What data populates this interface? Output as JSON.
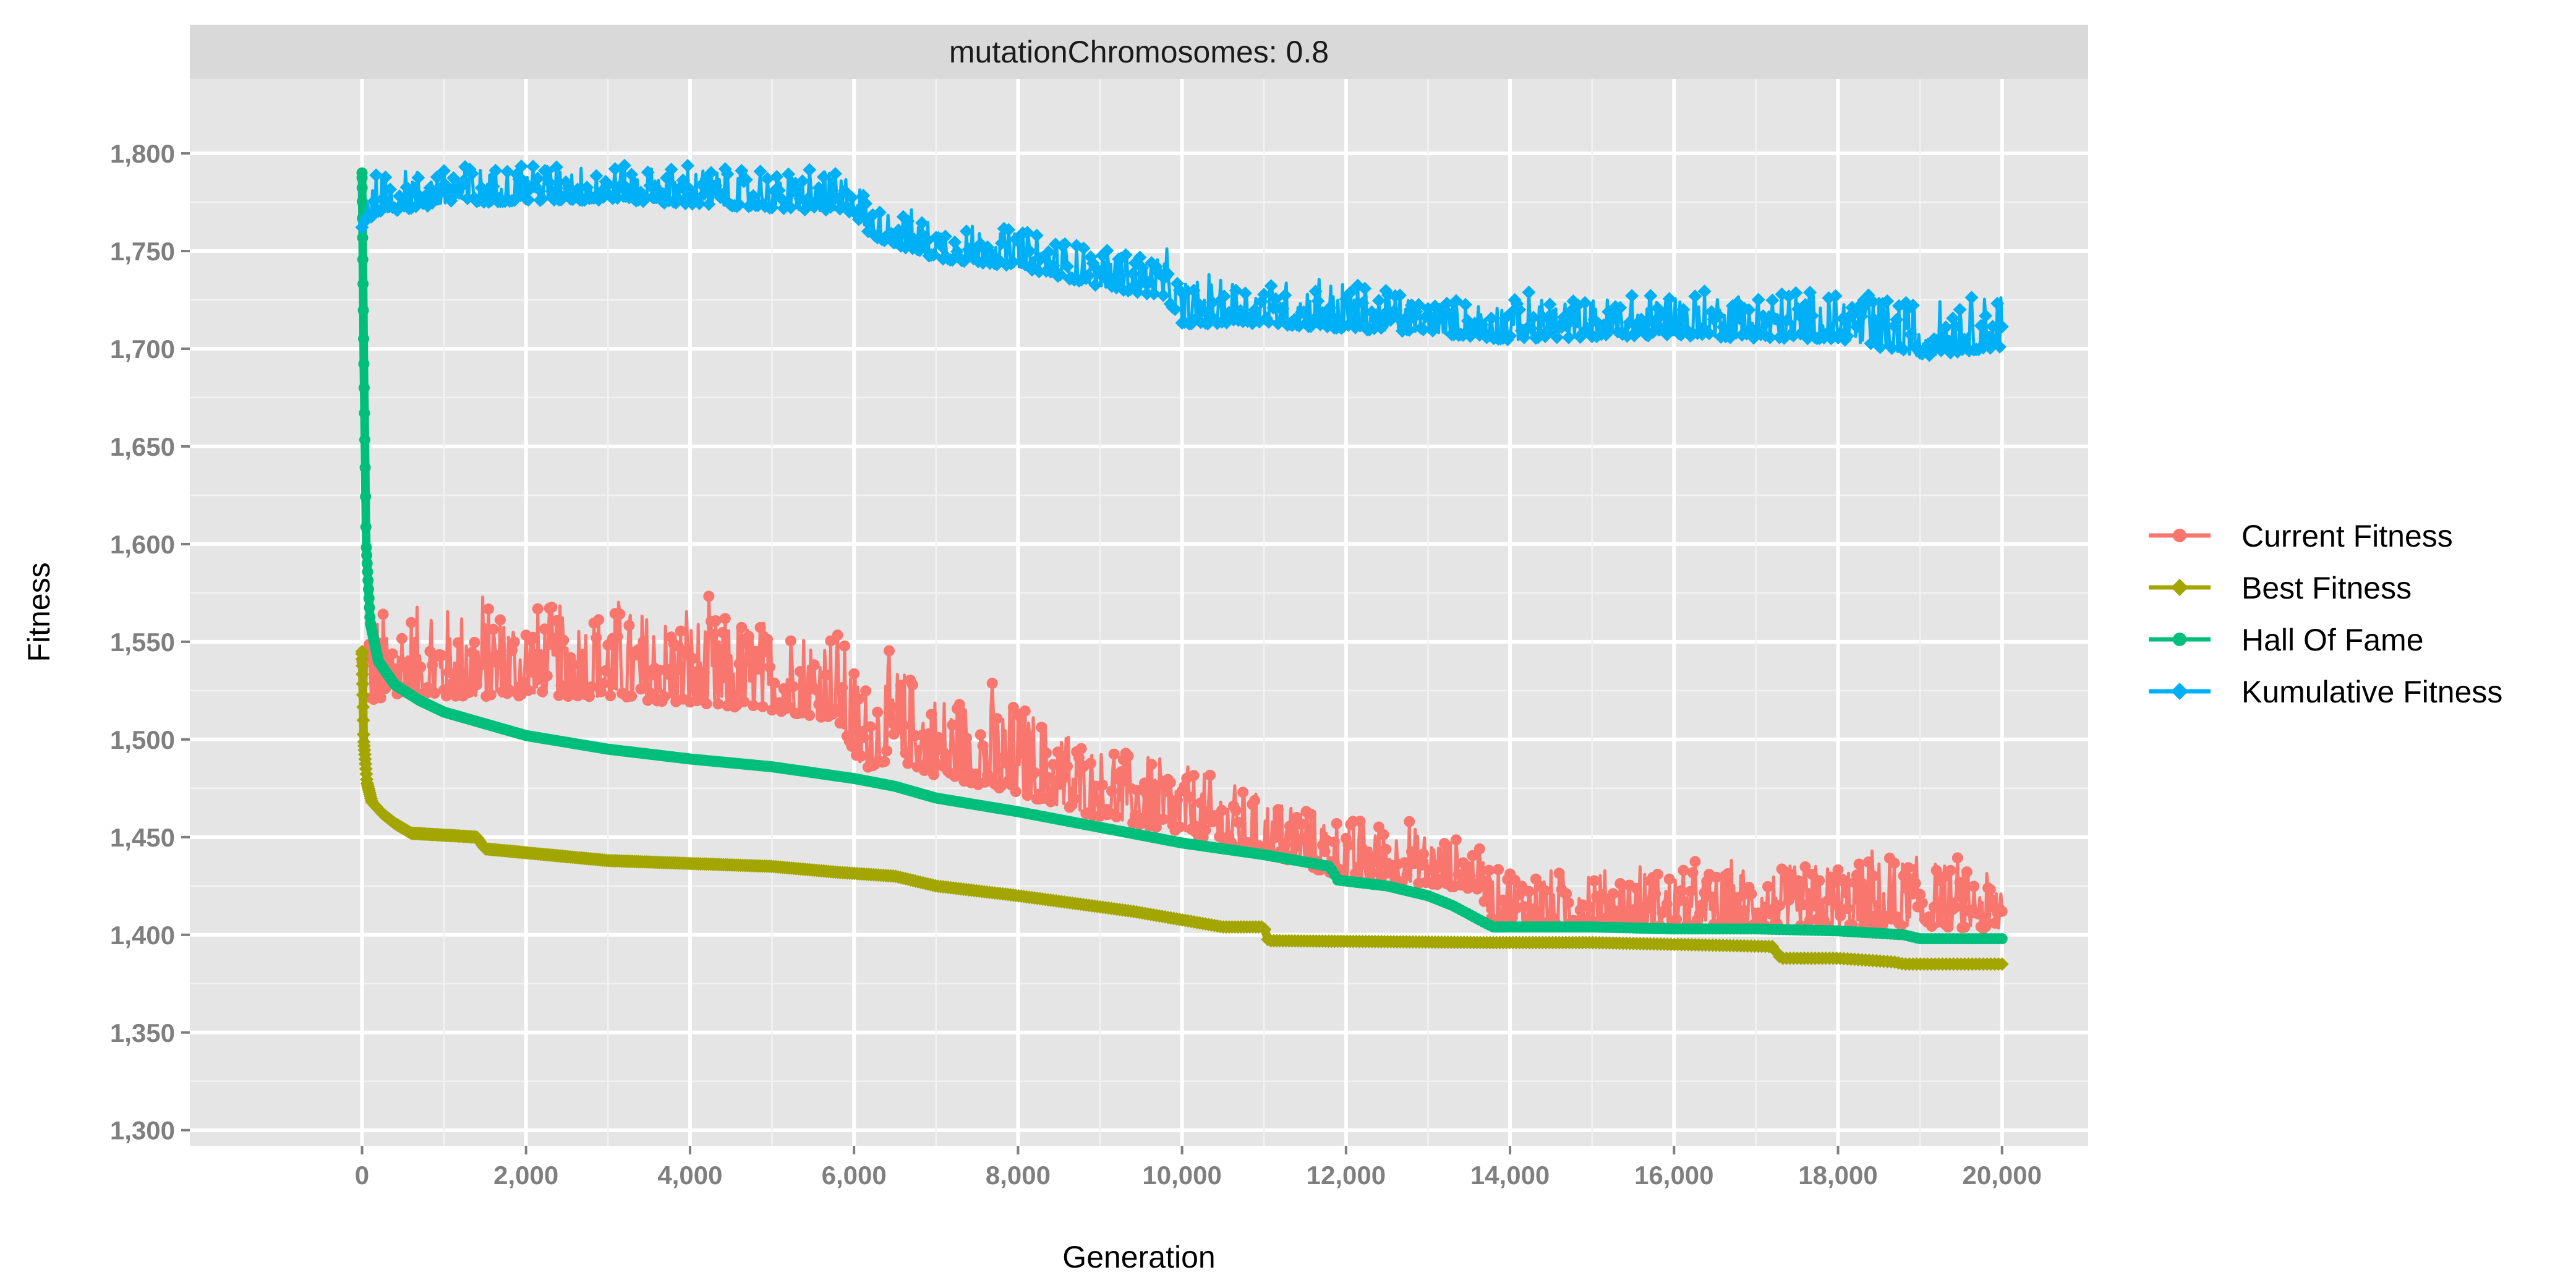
{
  "chart_data": {
    "type": "line",
    "facet_label": "mutationChromosomes: 0.8",
    "xlabel": "Generation",
    "ylabel": "Fitness",
    "xlim": [
      -2100,
      21050
    ],
    "ylim": [
      1292,
      1838
    ],
    "x_ticks": [
      0,
      2000,
      4000,
      6000,
      8000,
      10000,
      12000,
      14000,
      16000,
      18000,
      20000
    ],
    "x_tick_labels": [
      "0",
      "2,000",
      "4,000",
      "6,000",
      "8,000",
      "10,000",
      "12,000",
      "14,000",
      "16,000",
      "18,000",
      "20,000"
    ],
    "y_ticks": [
      1300,
      1350,
      1400,
      1450,
      1500,
      1550,
      1600,
      1650,
      1700,
      1750,
      1800
    ],
    "y_tick_labels": [
      "1,300",
      "1,350",
      "1,400",
      "1,450",
      "1,500",
      "1,550",
      "1,600",
      "1,650",
      "1,700",
      "1,750",
      "1,800"
    ],
    "grid": true,
    "legend_position": "right",
    "series": [
      {
        "name": "Current Fitness",
        "color": "#F8766D",
        "marker": "circle",
        "band": true,
        "x": [
          0,
          50,
          500,
          1000,
          2000,
          3000,
          4000,
          5000,
          5800,
          6100,
          6500,
          7000,
          8000,
          9000,
          10000,
          11000,
          12000,
          13000,
          13600,
          13800,
          15000,
          16000,
          17000,
          18000,
          19000,
          20000
        ],
        "low": [
          1515,
          1510,
          1512,
          1512,
          1512,
          1512,
          1508,
          1505,
          1500,
          1475,
          1480,
          1472,
          1462,
          1452,
          1445,
          1435,
          1422,
          1420,
          1418,
          1400,
          1398,
          1398,
          1398,
          1398,
          1397,
          1397
        ],
        "high": [
          1570,
          1575,
          1578,
          1578,
          1580,
          1578,
          1575,
          1572,
          1568,
          1540,
          1550,
          1535,
          1530,
          1505,
          1495,
          1478,
          1468,
          1460,
          1452,
          1440,
          1440,
          1440,
          1440,
          1445,
          1448,
          1435
        ]
      },
      {
        "name": "Best Fitness",
        "color": "#A3A500",
        "marker": "diamond",
        "x": [
          0,
          20,
          60,
          120,
          250,
          400,
          600,
          1400,
          1500,
          2500,
          3000,
          5000,
          5800,
          6500,
          7000,
          8000,
          9400,
          10500,
          11000,
          11050,
          13800,
          15000,
          17200,
          17300,
          18000,
          18700,
          18800,
          20000
        ],
        "y": [
          1545,
          1500,
          1478,
          1468,
          1462,
          1457,
          1452,
          1450,
          1444,
          1440,
          1438,
          1435,
          1432,
          1430,
          1425,
          1420,
          1412,
          1404,
          1404,
          1397,
          1396,
          1396,
          1394,
          1388,
          1388,
          1386,
          1385,
          1385
        ]
      },
      {
        "name": "Hall Of Fame",
        "color": "#00BF7D",
        "marker": "circle",
        "x": [
          0,
          20,
          50,
          100,
          200,
          400,
          700,
          1000,
          1500,
          2000,
          3000,
          4000,
          5000,
          6000,
          6500,
          7000,
          8000,
          9000,
          10000,
          11000,
          11800,
          11900,
          12500,
          13000,
          13300,
          13700,
          13800,
          15000,
          16000,
          17000,
          18000,
          18800,
          19000,
          20000
        ],
        "y": [
          1790,
          1700,
          1600,
          1560,
          1540,
          1528,
          1520,
          1514,
          1508,
          1502,
          1495,
          1490,
          1486,
          1480,
          1476,
          1470,
          1463,
          1455,
          1447,
          1441,
          1435,
          1428,
          1425,
          1420,
          1415,
          1406,
          1404,
          1404,
          1403,
          1403,
          1402,
          1400,
          1398,
          1398
        ]
      },
      {
        "name": "Kumulative Fitness",
        "color": "#00B0F6",
        "marker": "diamond",
        "band": true,
        "x": [
          0,
          20,
          200,
          1000,
          2000,
          3000,
          4000,
          5000,
          6000,
          6200,
          7000,
          8000,
          9000,
          9800,
          10000,
          11000,
          12000,
          13000,
          14000,
          15000,
          16000,
          17000,
          18000,
          19000,
          20000
        ],
        "low": [
          1745,
          1760,
          1765,
          1770,
          1772,
          1772,
          1770,
          1768,
          1765,
          1755,
          1742,
          1738,
          1728,
          1722,
          1708,
          1708,
          1705,
          1705,
          1700,
          1702,
          1702,
          1700,
          1700,
          1690,
          1695
        ],
        "high": [
          1785,
          1790,
          1795,
          1798,
          1798,
          1798,
          1797,
          1795,
          1795,
          1775,
          1770,
          1765,
          1755,
          1752,
          1740,
          1740,
          1740,
          1728,
          1730,
          1730,
          1735,
          1735,
          1735,
          1730,
          1735
        ]
      }
    ]
  }
}
